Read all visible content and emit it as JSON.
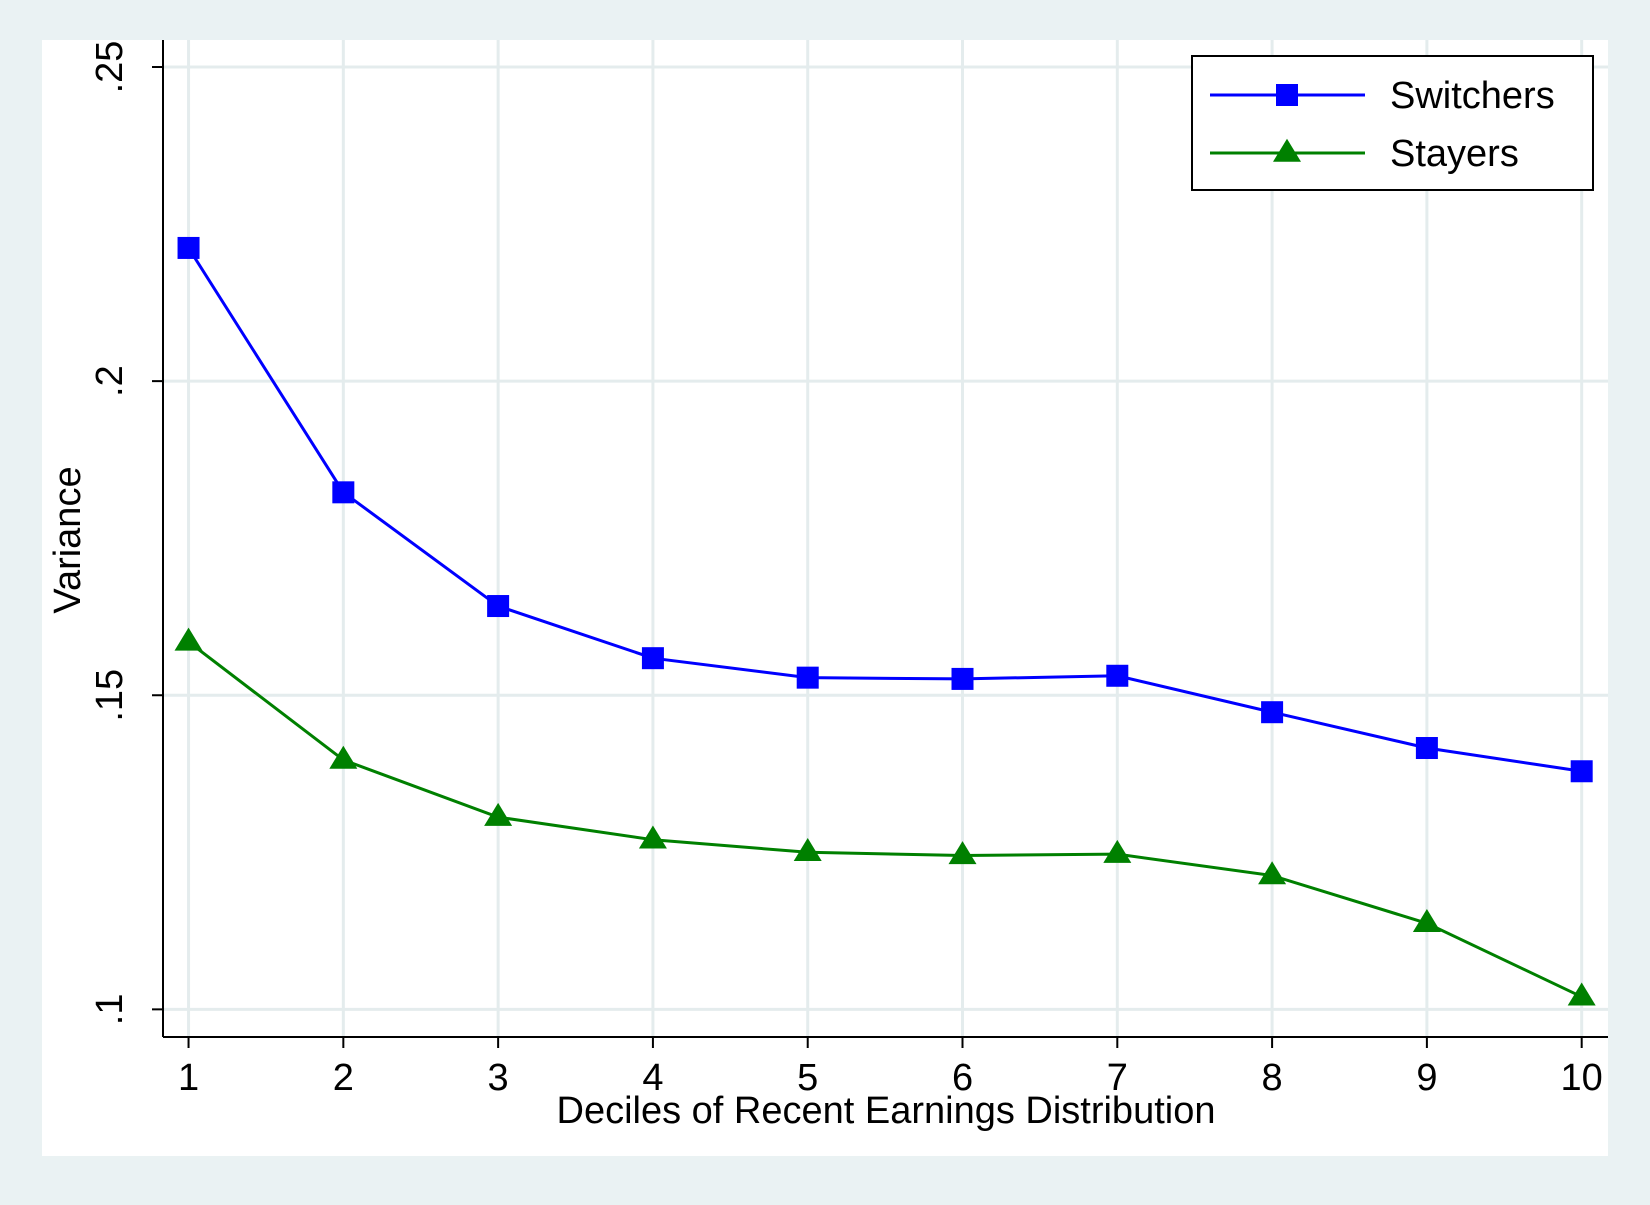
{
  "chart_data": {
    "type": "line",
    "title": "",
    "xlabel": "Deciles of Recent Earnings Distribution",
    "ylabel": "Variance",
    "x": [
      1,
      2,
      3,
      4,
      5,
      6,
      7,
      8,
      9,
      10
    ],
    "x_tick_labels": [
      "1",
      "2",
      "3",
      "4",
      "5",
      "6",
      "7",
      "8",
      "9",
      "10"
    ],
    "y_ticks": [
      0.1,
      0.15,
      0.2,
      0.25
    ],
    "y_tick_labels": [
      ".1",
      ".15",
      ".2",
      ".25"
    ],
    "xlim": [
      0.835,
      10.17
    ],
    "ylim": [
      0.0956,
      0.2543
    ],
    "grid": true,
    "legend_position": "top-right",
    "series": [
      {
        "name": "Switchers",
        "color": "#0000ff",
        "marker": "square",
        "values": [
          0.2212,
          0.1823,
          0.1642,
          0.1559,
          0.1528,
          0.1526,
          0.1531,
          0.1473,
          0.1416,
          0.1379
        ]
      },
      {
        "name": "Stayers",
        "color": "#008000",
        "marker": "triangle",
        "values": [
          0.1585,
          0.1397,
          0.1306,
          0.127,
          0.125,
          0.1245,
          0.1247,
          0.1213,
          0.1137,
          0.102
        ]
      }
    ]
  },
  "colors": {
    "background": "#eaf2f3",
    "plot_background": "#ffffff",
    "grid": "#e4eced"
  }
}
